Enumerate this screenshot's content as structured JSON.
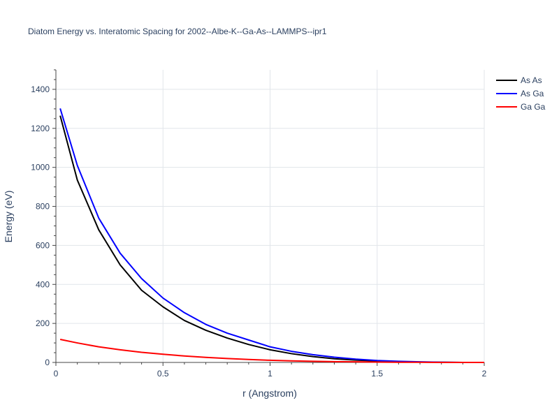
{
  "chart_data": {
    "type": "line",
    "title": "Diatom Energy vs. Interatomic Spacing for 2002--Albe-K--Ga-As--LAMMPS--ipr1",
    "xlabel": "r (Angstrom)",
    "ylabel": "Energy (eV)",
    "xlim": [
      0,
      2
    ],
    "ylim": [
      0,
      1500
    ],
    "xticks": [
      0,
      0.5,
      1,
      1.5,
      2
    ],
    "xtick_labels": [
      "0",
      "0.5",
      "1",
      "1.5",
      "2"
    ],
    "yticks": [
      0,
      200,
      400,
      600,
      800,
      1000,
      1200,
      1400
    ],
    "ytick_labels": [
      "0",
      "200",
      "400",
      "600",
      "800",
      "1000",
      "1200",
      "1400"
    ],
    "grid": true,
    "legend_position": "top-right",
    "x": [
      0.02,
      0.1,
      0.2,
      0.3,
      0.4,
      0.5,
      0.6,
      0.7,
      0.8,
      0.9,
      1.0,
      1.1,
      1.2,
      1.3,
      1.4,
      1.5,
      1.6,
      1.7,
      1.8,
      1.9,
      2.0
    ],
    "series": [
      {
        "name": "As As",
        "color": "#000000",
        "values": [
          1265,
          935,
          680,
          500,
          370,
          285,
          215,
          165,
          125,
          92,
          65,
          45,
          30,
          19,
          12,
          7,
          4,
          2,
          1,
          0,
          0
        ]
      },
      {
        "name": "As Ga",
        "color": "#0000ff",
        "values": [
          1302,
          1010,
          740,
          560,
          430,
          330,
          255,
          195,
          150,
          115,
          80,
          57,
          40,
          27,
          17,
          10,
          6,
          3,
          1,
          0,
          0
        ]
      },
      {
        "name": "Ga Ga",
        "color": "#ff0000",
        "values": [
          118,
          100,
          80,
          65,
          52,
          42,
          33,
          26,
          20,
          15,
          11,
          8,
          6,
          4,
          3,
          2,
          1,
          1,
          0,
          0,
          0
        ]
      }
    ]
  }
}
